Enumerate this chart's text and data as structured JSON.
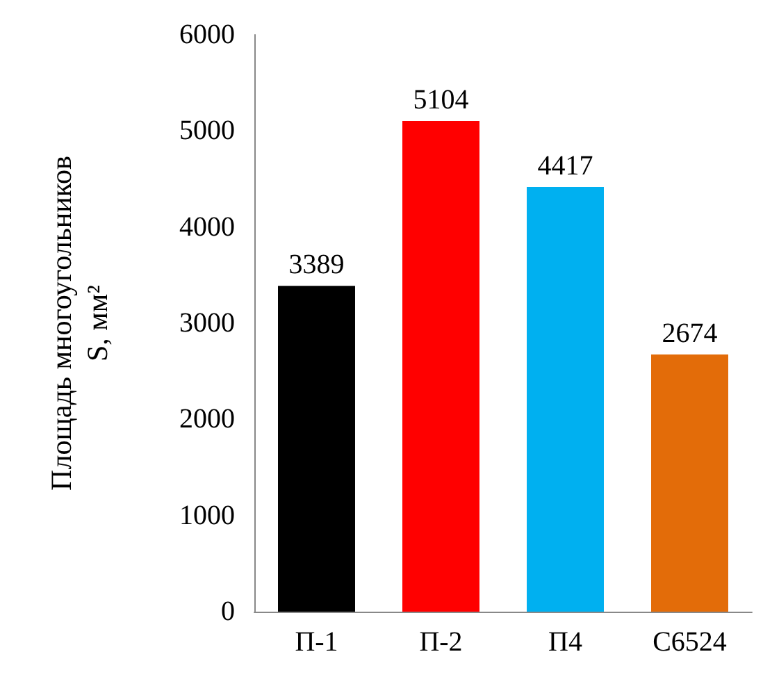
{
  "chart_data": {
    "type": "bar",
    "ylabel": "Площадь многоугольников\nS, мм²",
    "categories": [
      "П-1",
      "П-2",
      "П4",
      "С6524"
    ],
    "values": [
      3389,
      5104,
      4417,
      2674
    ],
    "colors": [
      "#000000",
      "#ff0000",
      "#00b0f0",
      "#e36c09"
    ],
    "ylim": [
      0,
      6000
    ],
    "yticks": [
      0,
      1000,
      2000,
      3000,
      4000,
      5000,
      6000
    ],
    "grid": false,
    "data_labels": true
  }
}
